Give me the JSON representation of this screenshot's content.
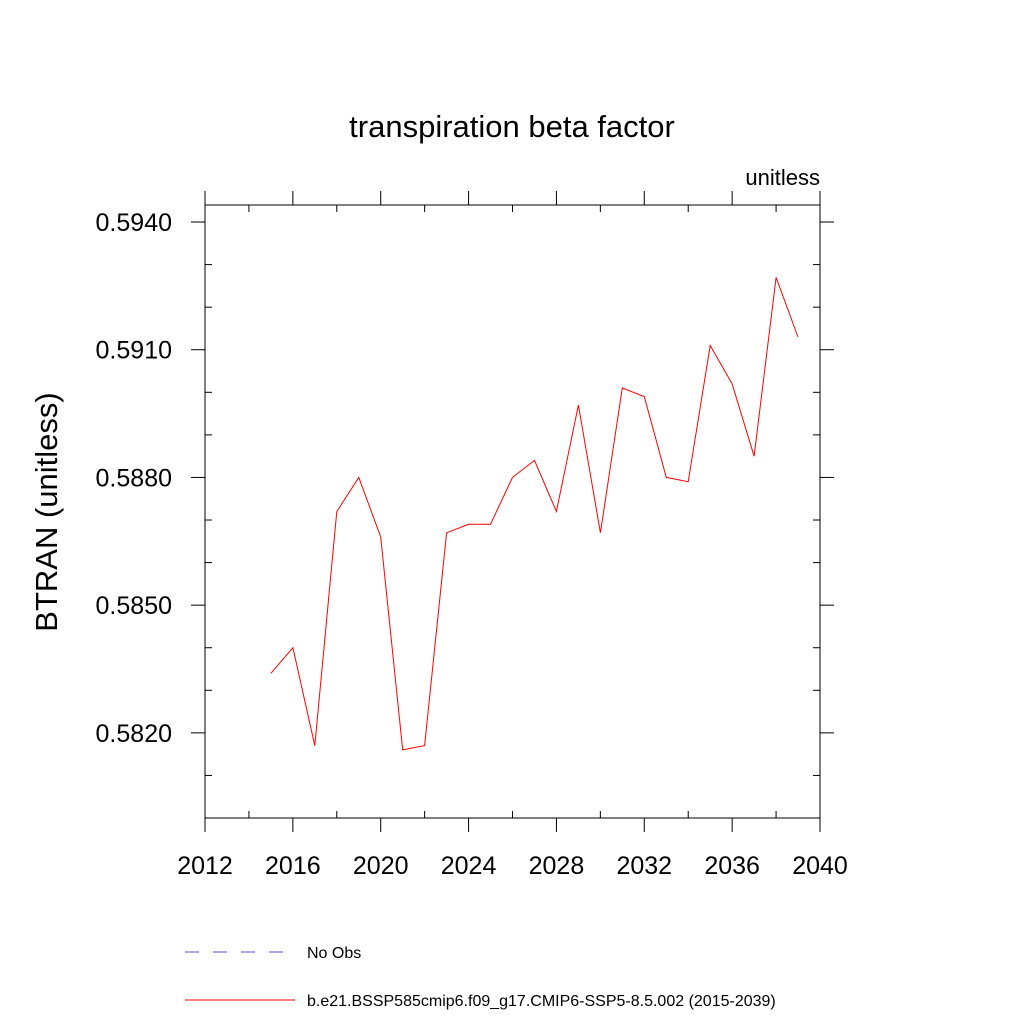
{
  "chart_data": {
    "type": "line",
    "title": "transpiration beta factor",
    "subtitle": "unitless",
    "xlabel": "",
    "ylabel": "BTRAN  (unitless)",
    "xlim": [
      2012,
      2040
    ],
    "ylim": [
      0.58,
      0.5944
    ],
    "xticks": [
      2012,
      2016,
      2020,
      2024,
      2028,
      2032,
      2036,
      2040
    ],
    "xtick_labels": [
      "2012",
      "2016",
      "2020",
      "2024",
      "2028",
      "2032",
      "2036",
      "2040"
    ],
    "yticks": [
      0.582,
      0.585,
      0.588,
      0.591,
      0.594
    ],
    "ytick_labels": [
      "0.5820",
      "0.5850",
      "0.5880",
      "0.5910",
      "0.5940"
    ],
    "x_minor_step": 2,
    "y_minor_step": 0.001,
    "grid": false,
    "legend_position": "bottom",
    "series": [
      {
        "name": "No Obs",
        "color": "#5b4fd0",
        "dash": true,
        "x": [],
        "y": []
      },
      {
        "name": "b.e21.BSSP585cmip6.f09_g17.CMIP6-SSP5-8.5.002 (2015-2039)",
        "color": "#ff0000",
        "dash": false,
        "x": [
          2015,
          2016,
          2017,
          2018,
          2019,
          2020,
          2021,
          2022,
          2023,
          2024,
          2025,
          2026,
          2027,
          2028,
          2029,
          2030,
          2031,
          2032,
          2033,
          2034,
          2035,
          2036,
          2037,
          2038,
          2039
        ],
        "y": [
          0.5834,
          0.584,
          0.5817,
          0.5872,
          0.588,
          0.5866,
          0.5816,
          0.5817,
          0.5867,
          0.5869,
          0.5869,
          0.588,
          0.5884,
          0.5872,
          0.5897,
          0.5867,
          0.5901,
          0.5899,
          0.588,
          0.5879,
          0.5911,
          0.5902,
          0.5885,
          0.5927,
          0.5913
        ]
      }
    ]
  }
}
